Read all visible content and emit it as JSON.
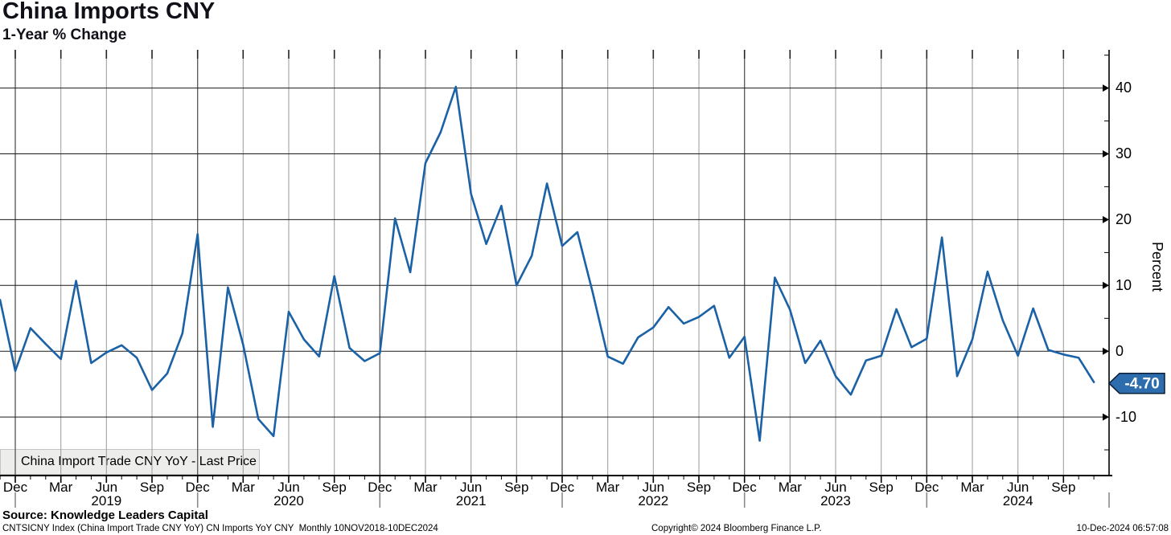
{
  "header": {
    "title": "China Imports CNY",
    "subtitle": "1-Year % Change"
  },
  "legend": {
    "label": "China Import Trade CNY YoY - Last Price",
    "marker_color": "#1b61a6"
  },
  "y_axis": {
    "label": "Percent",
    "major_ticks": [
      40,
      30,
      20,
      10,
      0,
      -10
    ],
    "minor_ticks": [
      45,
      35,
      25,
      15,
      5,
      -15
    ],
    "last_price_badge": {
      "value": "-4.70",
      "fill": "#2e6dad",
      "border": "#0c1e35",
      "text_color": "#ffffff"
    }
  },
  "x_axis": {
    "quarter_labels": [
      "Dec",
      "Mar",
      "Jun",
      "Sep",
      "Dec",
      "Mar",
      "Jun",
      "Sep",
      "Dec",
      "Mar",
      "Jun",
      "Sep",
      "Dec",
      "Mar",
      "Jun",
      "Sep",
      "Dec",
      "Mar",
      "Jun",
      "Sep",
      "Dec",
      "Mar",
      "Jun",
      "Sep"
    ],
    "year_labels": [
      "2019",
      "2020",
      "2021",
      "2022",
      "2023",
      "2024"
    ]
  },
  "footer": {
    "source": "Source: Knowledge Leaders Capital",
    "ticker_line": "CNTSICNY Index (China Import Trade CNY YoY) CN Imports YoY CNY  Monthly 10NOV2018-10DEC2024",
    "copyright": "Copyright© 2024 Bloomberg Finance L.P.",
    "timestamp": "10-Dec-2024 06:57:08"
  },
  "chart_data": {
    "type": "line",
    "title": "China Imports CNY",
    "subtitle": "1-Year % Change",
    "ylabel": "Percent",
    "ylim": [
      -19,
      46.2
    ],
    "grid": true,
    "legend_position": "bottom-left",
    "frequency": "monthly",
    "x_start": "2018-11",
    "x_end": "2024-11",
    "line_color": "#1b61a6",
    "series": [
      {
        "name": "China Import Trade CNY YoY - Last Price",
        "last_price": -4.7,
        "x_months": [
          "2018-11",
          "2018-12",
          "2019-01",
          "2019-02",
          "2019-03",
          "2019-04",
          "2019-05",
          "2019-06",
          "2019-07",
          "2019-08",
          "2019-09",
          "2019-10",
          "2019-11",
          "2019-12",
          "2020-01",
          "2020-02",
          "2020-03",
          "2020-04",
          "2020-05",
          "2020-06",
          "2020-07",
          "2020-08",
          "2020-09",
          "2020-10",
          "2020-11",
          "2020-12",
          "2021-01",
          "2021-02",
          "2021-03",
          "2021-04",
          "2021-05",
          "2021-06",
          "2021-07",
          "2021-08",
          "2021-09",
          "2021-10",
          "2021-11",
          "2021-12",
          "2022-01",
          "2022-02",
          "2022-03",
          "2022-04",
          "2022-05",
          "2022-06",
          "2022-07",
          "2022-08",
          "2022-09",
          "2022-10",
          "2022-11",
          "2022-12",
          "2023-01",
          "2023-02",
          "2023-03",
          "2023-04",
          "2023-05",
          "2023-06",
          "2023-07",
          "2023-08",
          "2023-09",
          "2023-10",
          "2023-11",
          "2023-12",
          "2024-01",
          "2024-02",
          "2024-03",
          "2024-04",
          "2024-05",
          "2024-06",
          "2024-07",
          "2024-08",
          "2024-09",
          "2024-10",
          "2024-11"
        ],
        "values": [
          7.8,
          -3.0,
          3.5,
          1.1,
          -1.2,
          10.7,
          -1.8,
          -0.2,
          0.9,
          -1.0,
          -5.9,
          -3.4,
          2.7,
          17.8,
          -11.5,
          9.7,
          1.0,
          -10.3,
          -12.9,
          6.0,
          1.8,
          -0.8,
          11.4,
          0.5,
          -1.5,
          -0.3,
          20.2,
          12.0,
          28.6,
          33.3,
          40.2,
          23.9,
          16.3,
          22.1,
          10.0,
          14.5,
          25.5,
          16.0,
          18.1,
          9.0,
          -0.8,
          -1.9,
          2.1,
          3.6,
          6.7,
          4.2,
          5.2,
          6.9,
          -1.0,
          2.2,
          -13.6,
          11.2,
          6.3,
          -1.8,
          1.6,
          -3.8,
          -6.6,
          -1.4,
          -0.7,
          6.4,
          0.6,
          1.9,
          17.3,
          -3.8,
          1.8,
          12.1,
          4.7,
          -0.7,
          6.5,
          0.2,
          -0.5,
          -1.0,
          -4.7
        ]
      }
    ]
  }
}
